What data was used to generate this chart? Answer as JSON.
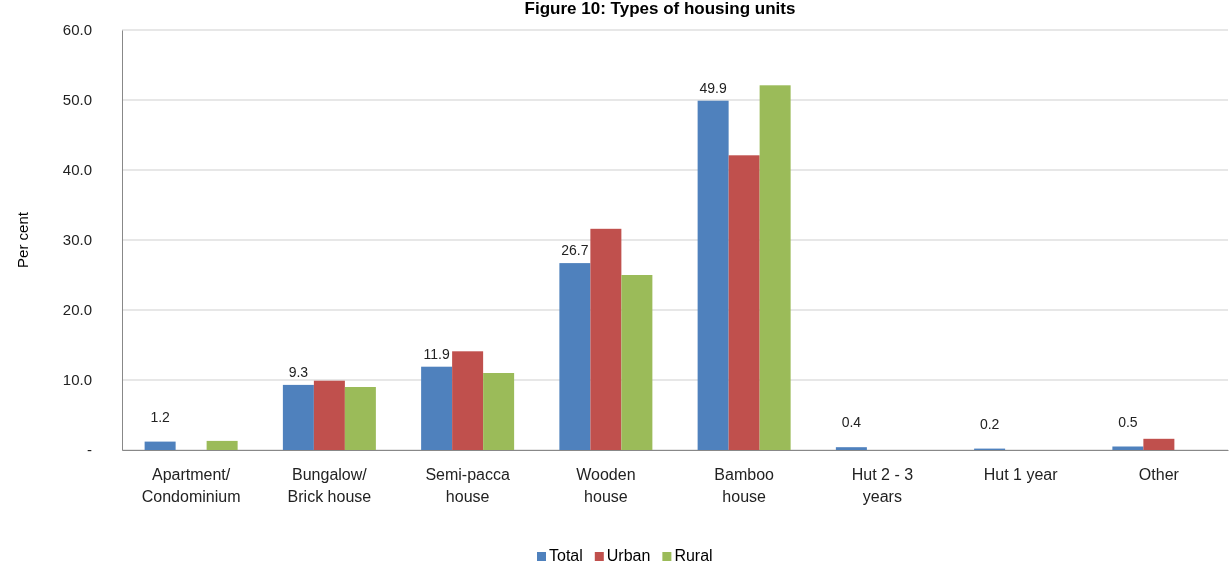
{
  "chart_data": {
    "type": "bar",
    "title": "Figure 10: Types of housing units",
    "ylabel": "Per cent",
    "categories": [
      "Apartment/\nCondominium",
      "Bungalow/\nBrick house",
      "Semi-pacca\nhouse",
      "Wooden\nhouse",
      "Bamboo\nhouse",
      "Hut 2 - 3\nyears",
      "Hut 1 year",
      "Other"
    ],
    "series": [
      {
        "name": "Total",
        "color": "#4f81bd",
        "values": [
          1.2,
          9.3,
          11.9,
          26.7,
          49.9,
          0.4,
          0.2,
          0.5
        ],
        "value_labels": [
          "1.2",
          "9.3",
          "11.9",
          "26.7",
          "49.9",
          "0.4",
          "0.2",
          "0.5"
        ]
      },
      {
        "name": "Urban",
        "color": "#c0504d",
        "values": [
          0,
          9.9,
          14.1,
          31.6,
          42.1,
          0,
          0,
          1.6
        ]
      },
      {
        "name": "Rural",
        "color": "#9bbb59",
        "values": [
          1.3,
          9.0,
          11.0,
          25.0,
          52.1,
          0,
          0,
          0
        ]
      }
    ],
    "ylim": [
      0,
      60
    ],
    "yticks": [
      {
        "value": 0,
        "label": "-"
      },
      {
        "value": 10,
        "label": "10.0"
      },
      {
        "value": 20,
        "label": "20.0"
      },
      {
        "value": 30,
        "label": "30.0"
      },
      {
        "value": 40,
        "label": "40.0"
      },
      {
        "value": 50,
        "label": "50.0"
      },
      {
        "value": 60,
        "label": "60.0"
      }
    ],
    "grid": "y",
    "legend": "bottom"
  }
}
